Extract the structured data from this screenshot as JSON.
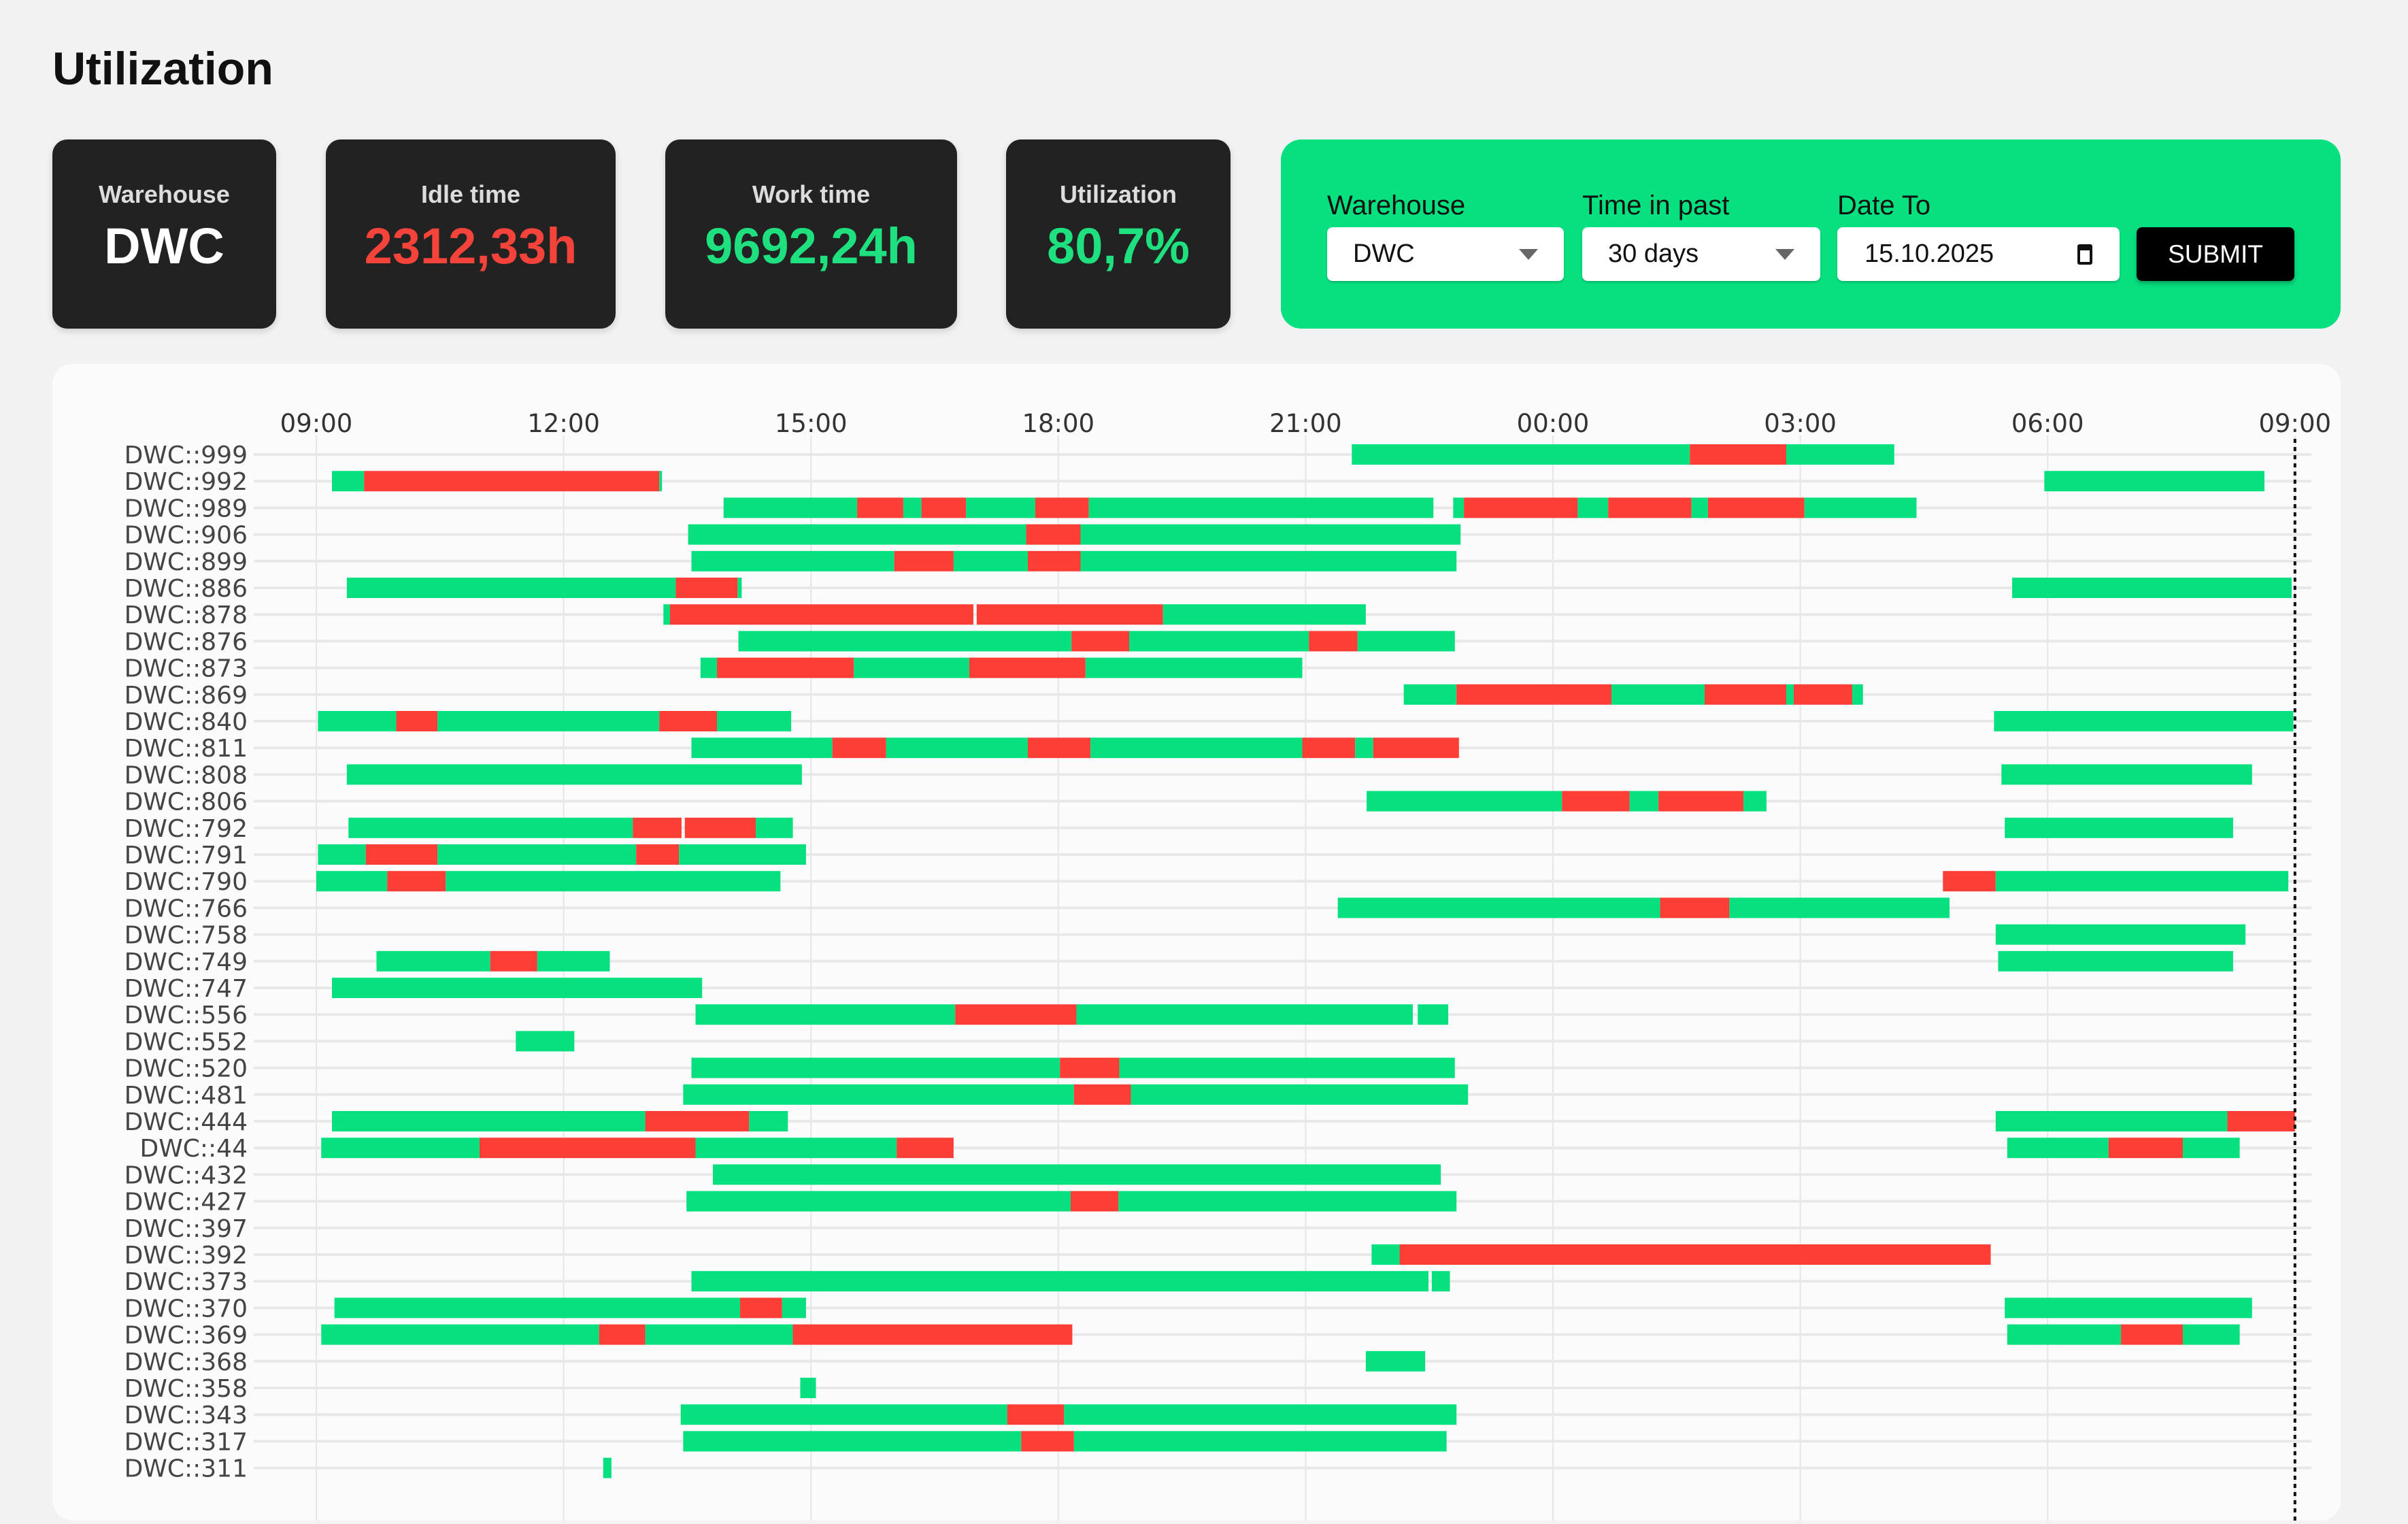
{
  "page_title": "Utilization",
  "stats": [
    {
      "label": "Warehouse",
      "value": "DWC",
      "color": "#ffffff"
    },
    {
      "label": "Idle time",
      "value": "2312,33h",
      "color": "#f4433a"
    },
    {
      "label": "Work time",
      "value": "9692,24h",
      "color": "#1ee07f"
    },
    {
      "label": "Utilization",
      "value": "80,7%",
      "color": "#1ee07f"
    }
  ],
  "filters": {
    "warehouse_label": "Warehouse",
    "warehouse_value": "DWC",
    "time_label": "Time in past",
    "time_value": "30 days",
    "date_label": "Date To",
    "date_value": "15.10.2025",
    "submit_label": "SUBMIT"
  },
  "colors": {
    "work": "#06e07f",
    "idle": "#fc3e36",
    "panel": "#06e07f"
  },
  "chart_data": {
    "type": "gantt",
    "x_unit": "hours since 09:00",
    "xlim": [
      0,
      24
    ],
    "ticks": [
      {
        "h": 0,
        "label": "09:00"
      },
      {
        "h": 3,
        "label": "12:00"
      },
      {
        "h": 6,
        "label": "15:00"
      },
      {
        "h": 9,
        "label": "18:00"
      },
      {
        "h": 12,
        "label": "21:00"
      },
      {
        "h": 15,
        "label": "00:00"
      },
      {
        "h": 18,
        "label": "03:00"
      },
      {
        "h": 21,
        "label": "06:00"
      },
      {
        "h": 24,
        "label": "09:00"
      }
    ],
    "now_marker_h": 24,
    "legend": {
      "W": "work",
      "I": "idle"
    },
    "rows": [
      {
        "name": "DWC::999",
        "segs": [
          [
            12.56,
            16.66,
            "W"
          ],
          [
            16.66,
            17.83,
            "I"
          ],
          [
            17.83,
            19.14,
            "W"
          ]
        ]
      },
      {
        "name": "DWC::992",
        "segs": [
          [
            0.19,
            0.58,
            "W"
          ],
          [
            0.58,
            4.16,
            "I"
          ],
          [
            4.16,
            4.19,
            "W"
          ],
          [
            20.96,
            23.63,
            "W"
          ]
        ]
      },
      {
        "name": "DWC::989",
        "segs": [
          [
            4.94,
            6.56,
            "W"
          ],
          [
            6.56,
            7.12,
            "I"
          ],
          [
            7.12,
            7.34,
            "W"
          ],
          [
            7.34,
            7.88,
            "I"
          ],
          [
            7.88,
            8.72,
            "W"
          ],
          [
            8.72,
            9.37,
            "I"
          ],
          [
            9.37,
            13.55,
            "W"
          ],
          [
            13.79,
            13.92,
            "W"
          ],
          [
            13.92,
            15.3,
            "I"
          ],
          [
            15.3,
            15.67,
            "W"
          ],
          [
            15.67,
            16.68,
            "I"
          ],
          [
            16.68,
            16.88,
            "W"
          ],
          [
            16.88,
            18.05,
            "I"
          ],
          [
            18.05,
            19.41,
            "W"
          ]
        ]
      },
      {
        "name": "DWC::906",
        "segs": [
          [
            4.51,
            8.61,
            "W"
          ],
          [
            8.61,
            9.27,
            "I"
          ],
          [
            9.27,
            13.88,
            "W"
          ]
        ]
      },
      {
        "name": "DWC::899",
        "segs": [
          [
            4.55,
            7.01,
            "W"
          ],
          [
            7.01,
            7.73,
            "I"
          ],
          [
            7.73,
            8.63,
            "W"
          ],
          [
            8.63,
            9.27,
            "I"
          ],
          [
            9.27,
            13.83,
            "W"
          ]
        ]
      },
      {
        "name": "DWC::886",
        "segs": [
          [
            0.37,
            4.36,
            "W"
          ],
          [
            4.36,
            5.11,
            "I"
          ],
          [
            5.11,
            5.16,
            "W"
          ],
          [
            20.57,
            23.96,
            "W"
          ]
        ]
      },
      {
        "name": "DWC::878",
        "segs": [
          [
            4.21,
            4.29,
            "W"
          ],
          [
            4.29,
            7.97,
            "I"
          ],
          [
            8.01,
            10.27,
            "I"
          ],
          [
            10.27,
            12.73,
            "W"
          ]
        ]
      },
      {
        "name": "DWC::876",
        "segs": [
          [
            5.12,
            9.16,
            "W"
          ],
          [
            9.16,
            9.86,
            "I"
          ],
          [
            9.86,
            12.04,
            "W"
          ],
          [
            12.04,
            12.63,
            "I"
          ],
          [
            12.63,
            13.81,
            "W"
          ]
        ]
      },
      {
        "name": "DWC::873",
        "segs": [
          [
            4.66,
            4.86,
            "W"
          ],
          [
            4.86,
            6.52,
            "I"
          ],
          [
            6.52,
            7.92,
            "W"
          ],
          [
            7.92,
            9.33,
            "I"
          ],
          [
            9.33,
            11.96,
            "W"
          ]
        ]
      },
      {
        "name": "DWC::869",
        "segs": [
          [
            13.19,
            13.83,
            "W"
          ],
          [
            13.83,
            15.71,
            "I"
          ],
          [
            15.71,
            16.84,
            "W"
          ],
          [
            16.84,
            17.83,
            "I"
          ],
          [
            17.83,
            17.92,
            "W"
          ],
          [
            17.92,
            18.63,
            "I"
          ],
          [
            18.63,
            18.76,
            "W"
          ]
        ]
      },
      {
        "name": "DWC::840",
        "segs": [
          [
            0.02,
            0.97,
            "W"
          ],
          [
            0.97,
            1.47,
            "I"
          ],
          [
            1.47,
            4.16,
            "W"
          ],
          [
            4.16,
            4.86,
            "I"
          ],
          [
            4.86,
            5.76,
            "W"
          ],
          [
            20.35,
            23.98,
            "W"
          ]
        ]
      },
      {
        "name": "DWC::811",
        "segs": [
          [
            4.55,
            6.26,
            "W"
          ],
          [
            6.26,
            6.91,
            "I"
          ],
          [
            6.91,
            8.63,
            "W"
          ],
          [
            8.63,
            9.39,
            "I"
          ],
          [
            9.39,
            11.96,
            "W"
          ],
          [
            11.96,
            12.6,
            "I"
          ],
          [
            12.6,
            12.82,
            "W"
          ],
          [
            12.82,
            13.86,
            "I"
          ]
        ]
      },
      {
        "name": "DWC::808",
        "segs": [
          [
            0.37,
            5.89,
            "W"
          ],
          [
            20.44,
            23.48,
            "W"
          ]
        ]
      },
      {
        "name": "DWC::806",
        "segs": [
          [
            12.74,
            15.11,
            "W"
          ],
          [
            15.11,
            15.93,
            "I"
          ],
          [
            15.93,
            16.28,
            "W"
          ],
          [
            16.28,
            17.31,
            "I"
          ],
          [
            17.31,
            17.59,
            "W"
          ]
        ]
      },
      {
        "name": "DWC::792",
        "segs": [
          [
            0.39,
            3.84,
            "W"
          ],
          [
            3.84,
            4.43,
            "I"
          ],
          [
            4.47,
            5.33,
            "I"
          ],
          [
            5.33,
            5.78,
            "W"
          ],
          [
            20.48,
            23.25,
            "W"
          ]
        ]
      },
      {
        "name": "DWC::791",
        "segs": [
          [
            0.02,
            0.6,
            "W"
          ],
          [
            0.6,
            1.47,
            "I"
          ],
          [
            1.47,
            3.88,
            "W"
          ],
          [
            3.88,
            4.4,
            "I"
          ],
          [
            4.4,
            5.94,
            "W"
          ]
        ]
      },
      {
        "name": "DWC::790",
        "segs": [
          [
            0,
            0.86,
            "W"
          ],
          [
            0.86,
            1.57,
            "I"
          ],
          [
            1.57,
            5.63,
            "W"
          ],
          [
            19.73,
            20.37,
            "I"
          ],
          [
            20.37,
            23.92,
            "W"
          ]
        ]
      },
      {
        "name": "DWC::766",
        "segs": [
          [
            12.39,
            16.3,
            "W"
          ],
          [
            16.3,
            17.14,
            "I"
          ],
          [
            17.14,
            19.81,
            "W"
          ]
        ]
      },
      {
        "name": "DWC::758",
        "segs": [
          [
            20.37,
            23.4,
            "W"
          ]
        ]
      },
      {
        "name": "DWC::749",
        "segs": [
          [
            0.73,
            2.11,
            "W"
          ],
          [
            2.11,
            2.68,
            "I"
          ],
          [
            2.68,
            3.56,
            "W"
          ],
          [
            20.4,
            23.25,
            "W"
          ]
        ]
      },
      {
        "name": "DWC::747",
        "segs": [
          [
            0.19,
            4.68,
            "W"
          ]
        ]
      },
      {
        "name": "DWC::556",
        "segs": [
          [
            4.6,
            7.75,
            "W"
          ],
          [
            7.75,
            9.22,
            "I"
          ],
          [
            9.22,
            13.3,
            "W"
          ],
          [
            13.36,
            13.73,
            "W"
          ]
        ]
      },
      {
        "name": "DWC::552",
        "segs": [
          [
            2.42,
            3.13,
            "W"
          ]
        ]
      },
      {
        "name": "DWC::520",
        "segs": [
          [
            4.55,
            9.02,
            "W"
          ],
          [
            9.02,
            9.74,
            "I"
          ],
          [
            9.74,
            13.81,
            "W"
          ]
        ]
      },
      {
        "name": "DWC::481",
        "segs": [
          [
            4.45,
            9.19,
            "W"
          ],
          [
            9.19,
            9.88,
            "I"
          ],
          [
            9.88,
            13.97,
            "W"
          ]
        ]
      },
      {
        "name": "DWC::444",
        "segs": [
          [
            0.19,
            3.99,
            "W"
          ],
          [
            3.99,
            5.25,
            "I"
          ],
          [
            5.25,
            5.72,
            "W"
          ],
          [
            20.37,
            23.18,
            "W"
          ],
          [
            23.18,
            24.0,
            "I"
          ]
        ]
      },
      {
        "name": "DWC::44",
        "segs": [
          [
            0.06,
            1.98,
            "W"
          ],
          [
            1.98,
            4.6,
            "I"
          ],
          [
            4.6,
            7.04,
            "W"
          ],
          [
            7.04,
            7.73,
            "I"
          ],
          [
            20.51,
            21.74,
            "W"
          ],
          [
            21.74,
            22.64,
            "I"
          ],
          [
            22.64,
            23.33,
            "W"
          ]
        ]
      },
      {
        "name": "DWC::432",
        "segs": [
          [
            4.81,
            13.64,
            "W"
          ]
        ]
      },
      {
        "name": "DWC::427",
        "segs": [
          [
            4.49,
            9.15,
            "W"
          ],
          [
            9.15,
            9.73,
            "I"
          ],
          [
            9.73,
            13.83,
            "W"
          ]
        ]
      },
      {
        "name": "DWC::397",
        "segs": []
      },
      {
        "name": "DWC::392",
        "segs": [
          [
            12.8,
            13.14,
            "W"
          ],
          [
            13.14,
            20.31,
            "I"
          ]
        ]
      },
      {
        "name": "DWC::373",
        "segs": [
          [
            4.55,
            13.49,
            "W"
          ],
          [
            13.53,
            13.75,
            "W"
          ]
        ]
      },
      {
        "name": "DWC::370",
        "segs": [
          [
            0.22,
            5.14,
            "W"
          ],
          [
            5.14,
            5.65,
            "I"
          ],
          [
            5.65,
            5.94,
            "W"
          ],
          [
            20.48,
            23.48,
            "W"
          ]
        ]
      },
      {
        "name": "DWC::369",
        "segs": [
          [
            0.06,
            3.43,
            "W"
          ],
          [
            3.43,
            3.99,
            "I"
          ],
          [
            3.99,
            5.78,
            "W"
          ],
          [
            5.78,
            9.17,
            "I"
          ],
          [
            20.51,
            21.89,
            "W"
          ],
          [
            21.89,
            22.64,
            "I"
          ],
          [
            22.64,
            23.33,
            "W"
          ]
        ]
      },
      {
        "name": "DWC::368",
        "segs": [
          [
            12.73,
            13.45,
            "W"
          ]
        ]
      },
      {
        "name": "DWC::358",
        "segs": [
          [
            5.87,
            6.06,
            "W"
          ]
        ]
      },
      {
        "name": "DWC::343",
        "segs": [
          [
            4.42,
            8.38,
            "W"
          ],
          [
            8.38,
            9.07,
            "I"
          ],
          [
            9.07,
            13.83,
            "W"
          ]
        ]
      },
      {
        "name": "DWC::317",
        "segs": [
          [
            4.45,
            8.55,
            "W"
          ],
          [
            8.55,
            9.19,
            "I"
          ],
          [
            9.19,
            13.71,
            "W"
          ]
        ]
      },
      {
        "name": "DWC::311",
        "segs": [
          [
            3.48,
            3.58,
            "W"
          ]
        ]
      }
    ]
  }
}
